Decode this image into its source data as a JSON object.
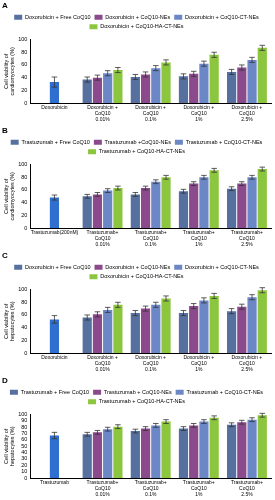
{
  "chart_data": [
    {
      "type": "bar",
      "title": "A",
      "y_label": "Cell viability of cardiomyocytes (%)",
      "categories": [
        "Doxorubicin",
        "Doxorubicin + CoQ10 0.01%",
        "Doxorubicin + CoQ10 0.1%",
        "Doxorubicin + CoQ10 1%",
        "Doxorubicin + CoQ10 2.5%"
      ],
      "control": {
        "value": 33,
        "error": 8,
        "color": "#2f6fd0"
      },
      "series": [
        {
          "name": "Doxorubicin + Free CoQ10",
          "color": "#56709f",
          "values": [
            null,
            37,
            41,
            42,
            49
          ],
          "errors": [
            null,
            4,
            4,
            4,
            4
          ]
        },
        {
          "name": "Doxorubicin + CoQ10-NEs",
          "color": "#8a4a8c",
          "values": [
            null,
            40,
            45,
            46,
            56
          ],
          "errors": [
            null,
            4,
            4,
            4,
            4
          ]
        },
        {
          "name": "Doxorubicin + CoQ10-CT-NEs",
          "color": "#6b87c6",
          "values": [
            null,
            47,
            55,
            62,
            68
          ],
          "errors": [
            null,
            4,
            4,
            4,
            4
          ]
        },
        {
          "name": "Doxorubicin + CoQ10-HA-CT-NEs",
          "color": "#8cc63e",
          "values": [
            null,
            52,
            64,
            76,
            87
          ],
          "errors": [
            null,
            4,
            4,
            4,
            4
          ]
        }
      ],
      "ylim": [
        0,
        100
      ],
      "yticks": [
        0,
        20,
        40,
        60,
        80,
        100
      ],
      "grid": false,
      "legend": "top"
    },
    {
      "type": "bar",
      "title": "B",
      "y_label": "Cell viability of cardiomyocytes (%)",
      "categories": [
        "Trastuzumab(200nM)",
        "Trastuzumab+CoQ10 0.01%",
        "Trastuzumab+CoQ10 0.1%",
        "Trastuzumab+CoQ10 1%",
        "Trastuzumab+CoQ10 2.5%"
      ],
      "control": {
        "value": 48,
        "error": 4,
        "color": "#2f6fd0"
      },
      "series": [
        {
          "name": "Trastuzumab + Free CoQ10",
          "color": "#56709f",
          "values": [
            null,
            50,
            53,
            58,
            62
          ],
          "errors": [
            null,
            3,
            3,
            3,
            3
          ]
        },
        {
          "name": "Trastuzumab +CoQ10-NEs",
          "color": "#8a4a8c",
          "values": [
            null,
            53,
            63,
            70,
            70
          ],
          "errors": [
            null,
            3,
            3,
            3,
            3
          ]
        },
        {
          "name": "Trastuzumab + CoQ10-CT-NEs",
          "color": "#6b87c6",
          "values": [
            null,
            59,
            73,
            80,
            80
          ],
          "errors": [
            null,
            3,
            3,
            3,
            3
          ]
        },
        {
          "name": "Trastuzumab + CoQ10-HA-CT-NEs",
          "color": "#8cc63e",
          "values": [
            null,
            63,
            80,
            91,
            93
          ],
          "errors": [
            null,
            3,
            3,
            3,
            3
          ]
        }
      ],
      "ylim": [
        0,
        100
      ],
      "yticks": [
        0,
        20,
        40,
        60,
        80,
        100
      ],
      "grid": false,
      "legend": "top"
    },
    {
      "type": "bar",
      "title": "C",
      "y_label": "Cell viability of hepatocytes (%)",
      "categories": [
        "Doxorubicin",
        "Doxorubicin + CoQ10 0.01%",
        "Doxorubicin + CoQ10 0.1%",
        "Doxorubicin + CoQ10 1%",
        "Doxorubicin + CoQ10 2.5%"
      ],
      "control": {
        "value": 53,
        "error": 6,
        "color": "#2f6fd0"
      },
      "series": [
        {
          "name": "Doxorubicin + Free CoQ10",
          "color": "#56709f",
          "values": [
            null,
            56,
            63,
            63,
            66
          ],
          "errors": [
            null,
            4,
            4,
            4,
            4
          ]
        },
        {
          "name": "Doxorubicin + CoQ10-NEs",
          "color": "#8a4a8c",
          "values": [
            null,
            61,
            70,
            74,
            73
          ],
          "errors": [
            null,
            4,
            4,
            4,
            4
          ]
        },
        {
          "name": "Doxorubicin + CoQ10-CT-NEs",
          "color": "#6b87c6",
          "values": [
            null,
            68,
            76,
            83,
            88
          ],
          "errors": [
            null,
            4,
            4,
            4,
            4
          ]
        },
        {
          "name": "Doxorubicin + CoQ10-HA-CT-NEs",
          "color": "#8cc63e",
          "values": [
            null,
            76,
            86,
            90,
            99
          ],
          "errors": [
            null,
            4,
            4,
            4,
            4
          ]
        }
      ],
      "ylim": [
        0,
        100
      ],
      "yticks": [
        0,
        20,
        40,
        60,
        80,
        100
      ],
      "grid": false,
      "legend": "top"
    },
    {
      "type": "bar",
      "title": "D",
      "y_label": "Cell viability of hepatocytes (%)",
      "categories": [
        "Trastuzumab",
        "Trastuzumab+CoQ10 0.01%",
        "Trastuzumab+CoQ10 0.1%",
        "Trastuzumab+CoQ10 1%",
        "Trastuzumab+CoQ10 2.5%"
      ],
      "control": {
        "value": 67,
        "error": 5,
        "color": "#2f6fd0"
      },
      "series": [
        {
          "name": "Trastuzumab + Free CoQ10",
          "color": "#56709f",
          "values": [
            null,
            69,
            74,
            78,
            84
          ],
          "errors": [
            null,
            3,
            3,
            3,
            3
          ]
        },
        {
          "name": "Trastuzumab + CoQ10-NEs",
          "color": "#8a4a8c",
          "values": [
            null,
            72,
            78,
            83,
            88
          ],
          "errors": [
            null,
            3,
            3,
            3,
            3
          ]
        },
        {
          "name": "Trastuzumab + CoQ10-CT-NEs",
          "color": "#6b87c6",
          "values": [
            null,
            77,
            83,
            89,
            92
          ],
          "errors": [
            null,
            3,
            3,
            3,
            3
          ]
        },
        {
          "name": "Trastuzumab + CoQ10-HA-CT-NEs",
          "color": "#8cc63e",
          "values": [
            null,
            81,
            89,
            95,
            99
          ],
          "errors": [
            null,
            3,
            3,
            3,
            3
          ]
        }
      ],
      "ylim": [
        0,
        100
      ],
      "yticks": [
        0,
        10,
        20,
        30,
        40,
        50,
        60,
        70,
        80,
        90,
        100
      ],
      "grid": false,
      "legend": "top"
    }
  ]
}
